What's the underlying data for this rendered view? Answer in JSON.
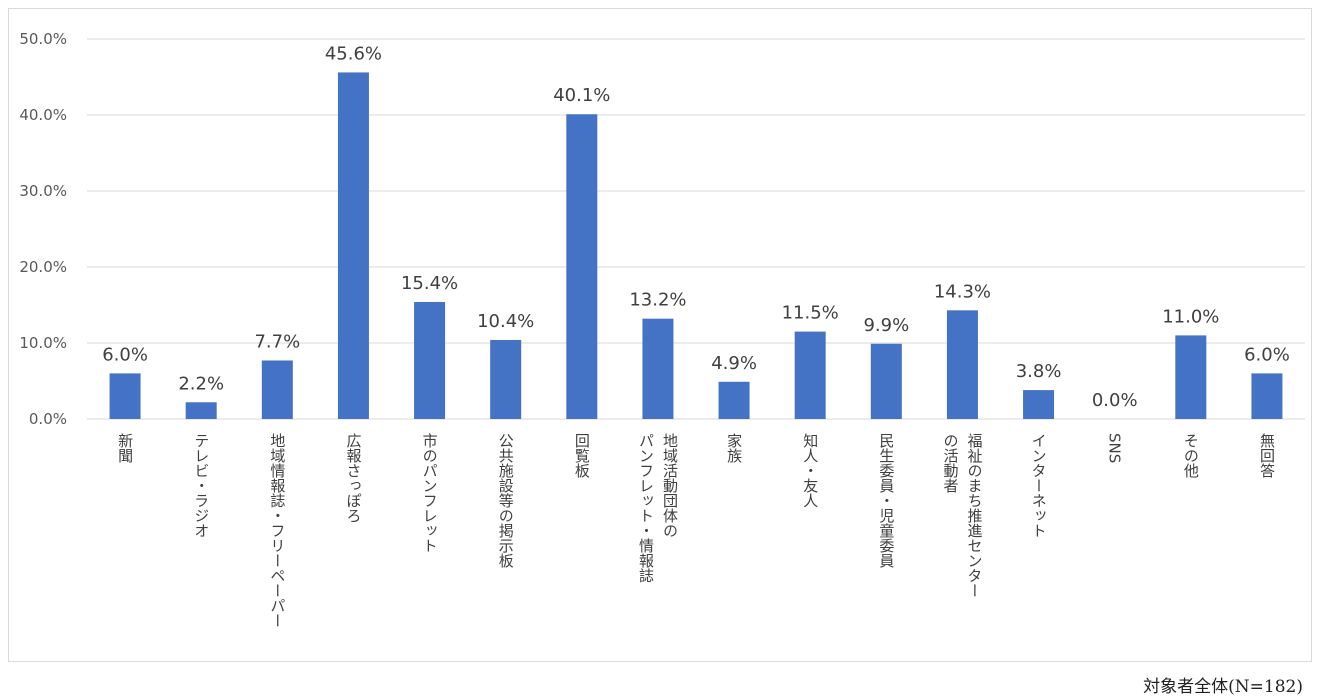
{
  "chart_data": {
    "type": "bar",
    "categories": [
      [
        "新聞"
      ],
      [
        "テレビ・ラジオ"
      ],
      [
        "地域情報誌・フリーペーパー"
      ],
      [
        "広報さっぽろ"
      ],
      [
        "市のパンフレット"
      ],
      [
        "公共施設等の掲示板"
      ],
      [
        "回覧板"
      ],
      [
        "地域活動団体の",
        "パンフレット・情報誌"
      ],
      [
        "家族"
      ],
      [
        "知人・友人"
      ],
      [
        "民生委員・児童委員"
      ],
      [
        "福祉のまち推進センター",
        "の活動者"
      ],
      [
        "インターネット"
      ],
      [
        "SNS"
      ],
      [
        "その他"
      ],
      [
        "無回答"
      ]
    ],
    "values": [
      6.0,
      2.2,
      7.7,
      45.6,
      15.4,
      10.4,
      40.1,
      13.2,
      4.9,
      11.5,
      9.9,
      14.3,
      3.8,
      0.0,
      11.0,
      6.0
    ],
    "data_labels": [
      "6.0%",
      "2.2%",
      "7.7%",
      "45.6%",
      "15.4%",
      "10.4%",
      "40.1%",
      "13.2%",
      "4.9%",
      "11.5%",
      "9.9%",
      "14.3%",
      "3.8%",
      "0.0%",
      "11.0%",
      "6.0%"
    ],
    "y_ticks": [
      0,
      10,
      20,
      30,
      40,
      50
    ],
    "y_tick_labels": [
      "0.0%",
      "10.0%",
      "20.0%",
      "30.0%",
      "40.0%",
      "50.0%"
    ],
    "ylim": [
      0,
      50
    ],
    "grid": true,
    "bar_color": "#4472c4",
    "grid_color": "#d9d9d9",
    "title": "",
    "xlabel": "",
    "ylabel": ""
  },
  "note": "対象者全体(N=182)"
}
